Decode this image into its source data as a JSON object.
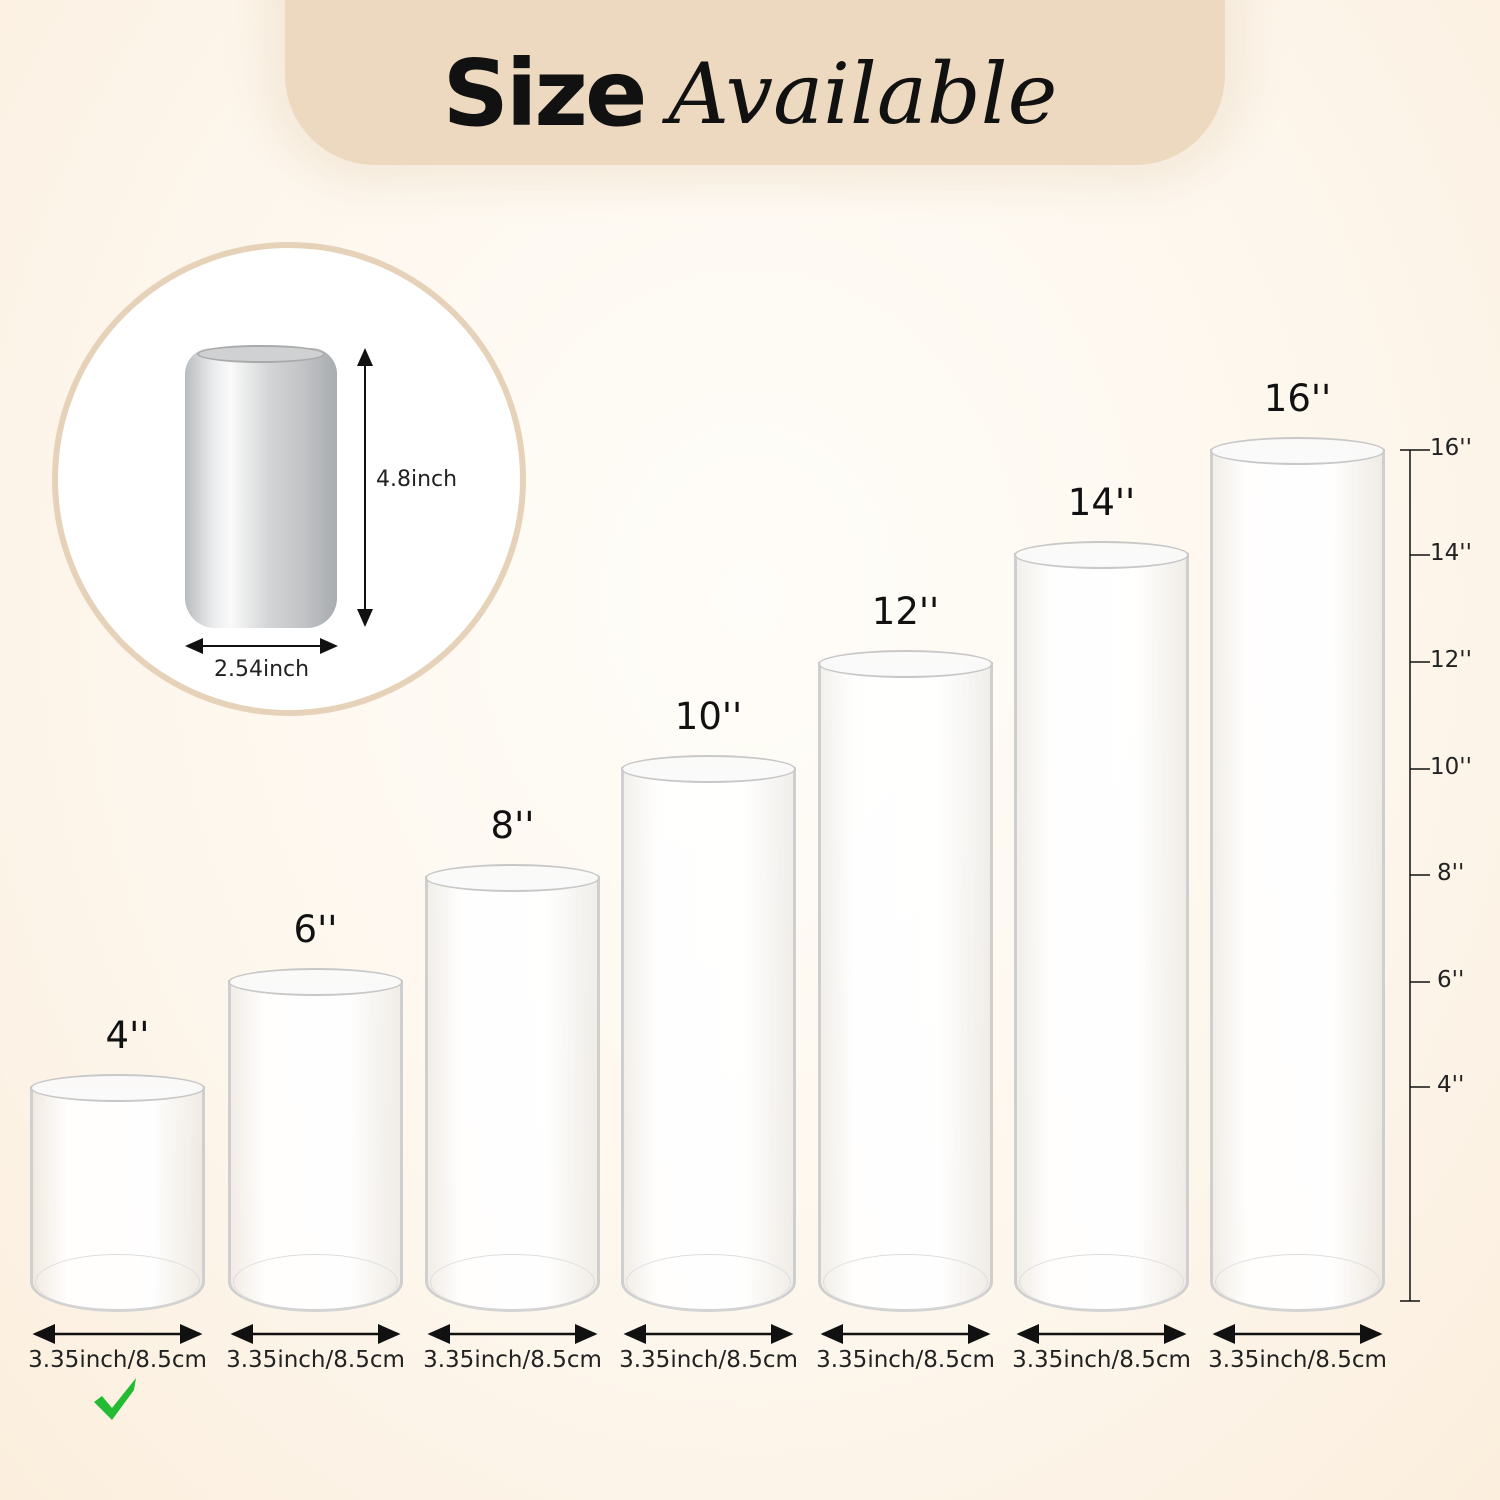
{
  "header": {
    "title_bold": "Size",
    "title_script": "Available",
    "tab_color": "#ecd9c0"
  },
  "reference": {
    "object": "soda can",
    "height_label": "4.8inch",
    "width_label": "2.54inch",
    "ring_color": "#e6d2b8"
  },
  "cylinders": [
    {
      "height_label": "4''",
      "height_in": 4,
      "diameter_label": "3.35inch/8.5cm",
      "selected": true
    },
    {
      "height_label": "6''",
      "height_in": 6,
      "diameter_label": "3.35inch/8.5cm",
      "selected": false
    },
    {
      "height_label": "8''",
      "height_in": 8,
      "diameter_label": "3.35inch/8.5cm",
      "selected": false
    },
    {
      "height_label": "10''",
      "height_in": 10,
      "diameter_label": "3.35inch/8.5cm",
      "selected": false
    },
    {
      "height_label": "12''",
      "height_in": 12,
      "diameter_label": "3.35inch/8.5cm",
      "selected": false
    },
    {
      "height_label": "14''",
      "height_in": 14,
      "diameter_label": "3.35inch/8.5cm",
      "selected": false
    },
    {
      "height_label": "16''",
      "height_in": 16,
      "diameter_label": "3.35inch/8.5cm",
      "selected": false
    }
  ],
  "scale": {
    "ticks": [
      "16''",
      "14''",
      "12''",
      "10''",
      "8''",
      "6''",
      "4''"
    ],
    "values": [
      16,
      14,
      12,
      10,
      8,
      6,
      4
    ]
  },
  "check_color": "#22bb33"
}
